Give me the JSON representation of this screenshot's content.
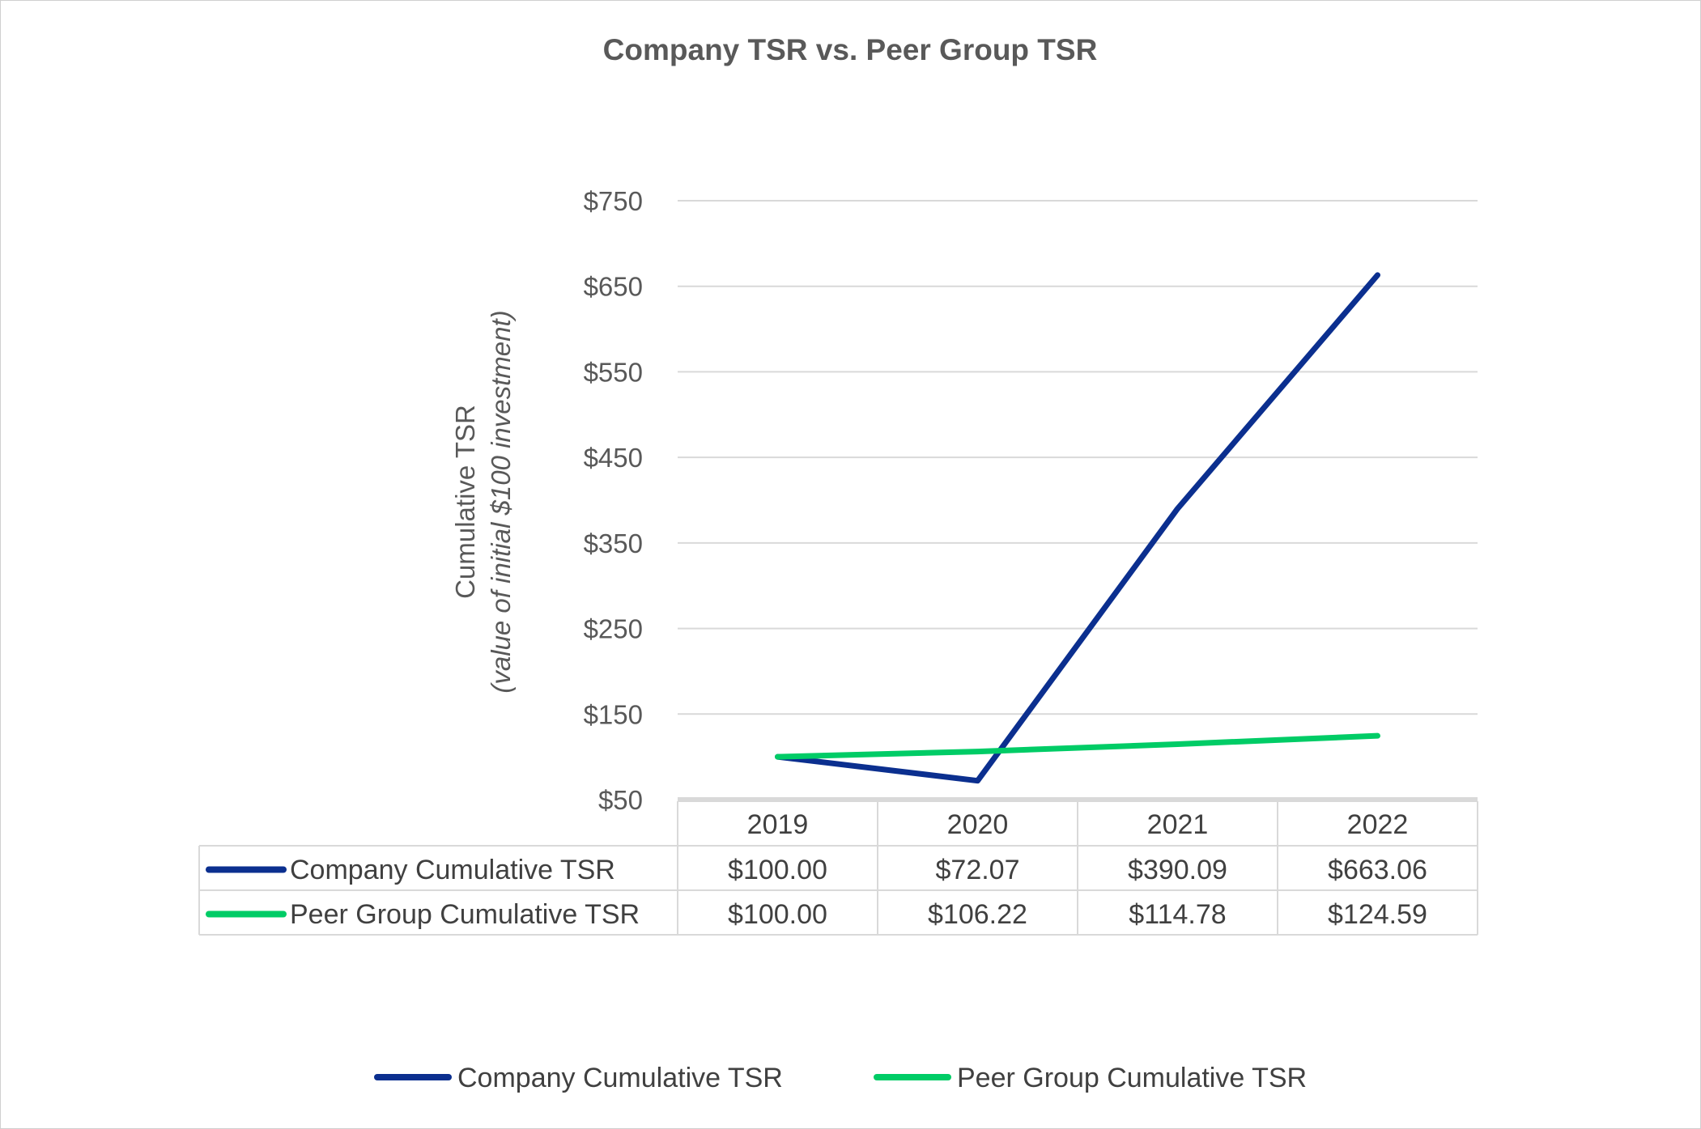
{
  "chart_data": {
    "type": "line",
    "title": "Company TSR vs. Peer Group TSR",
    "ylabel_line1": "Cumulative TSR",
    "ylabel_line2": "(value of initial $100 investment)",
    "categories": [
      "2019",
      "2020",
      "2021",
      "2022"
    ],
    "ylim": [
      50,
      750
    ],
    "yticks": [
      50,
      150,
      250,
      350,
      450,
      550,
      650,
      750
    ],
    "ytick_labels": [
      "$50",
      "$150",
      "$250",
      "$350",
      "$450",
      "$550",
      "$650",
      "$750"
    ],
    "grid": true,
    "legend_placement": "bottom",
    "series": [
      {
        "name": "Company Cumulative TSR",
        "color": "#0b2f8f",
        "values": [
          100.0,
          72.07,
          390.09,
          663.06
        ],
        "labels": [
          "$100.00",
          "$72.07",
          "$390.09",
          "$663.06"
        ]
      },
      {
        "name": "Peer Group Cumulative TSR",
        "color": "#00cc66",
        "values": [
          100.0,
          106.22,
          114.78,
          124.59
        ],
        "labels": [
          "$100.00",
          "$106.22",
          "$114.78",
          "$124.59"
        ]
      }
    ]
  }
}
